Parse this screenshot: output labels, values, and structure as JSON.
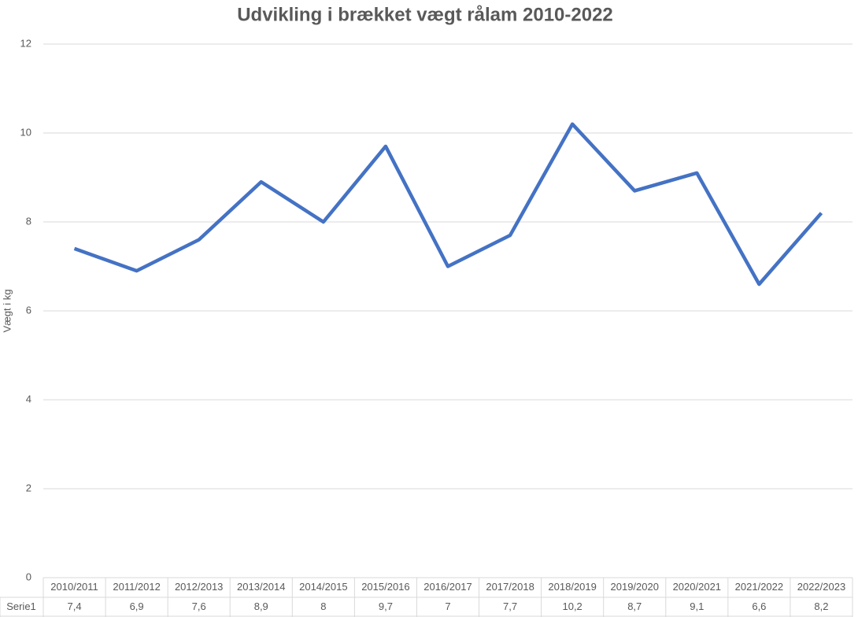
{
  "chart_data": {
    "type": "line",
    "title": "Udvikling i brækket vægt rålam 2010-2022",
    "y_label": "Vægt i kg",
    "categories": [
      "2010/2011",
      "2011/2012",
      "2012/2013",
      "2013/2014",
      "2014/2015",
      "2015/2016",
      "2016/2017",
      "2017/2018",
      "2018/2019",
      "2019/2020",
      "2020/2021",
      "2021/2022",
      "2022/2023"
    ],
    "series": [
      {
        "name": "Serie1",
        "color": "#4472c4",
        "values": [
          7.4,
          6.9,
          7.6,
          8.9,
          8,
          9.7,
          7,
          7.7,
          10.2,
          8.7,
          9.1,
          6.6,
          8.2
        ],
        "value_labels": [
          "7,4",
          "6,9",
          "7,6",
          "8,9",
          "8",
          "9,7",
          "7",
          "7,7",
          "10,2",
          "8,7",
          "9,1",
          "6,6",
          "8,2"
        ]
      }
    ],
    "ylim": [
      0,
      12
    ],
    "yticks": [
      0,
      2,
      4,
      6,
      8,
      10,
      12
    ],
    "grid": true
  }
}
